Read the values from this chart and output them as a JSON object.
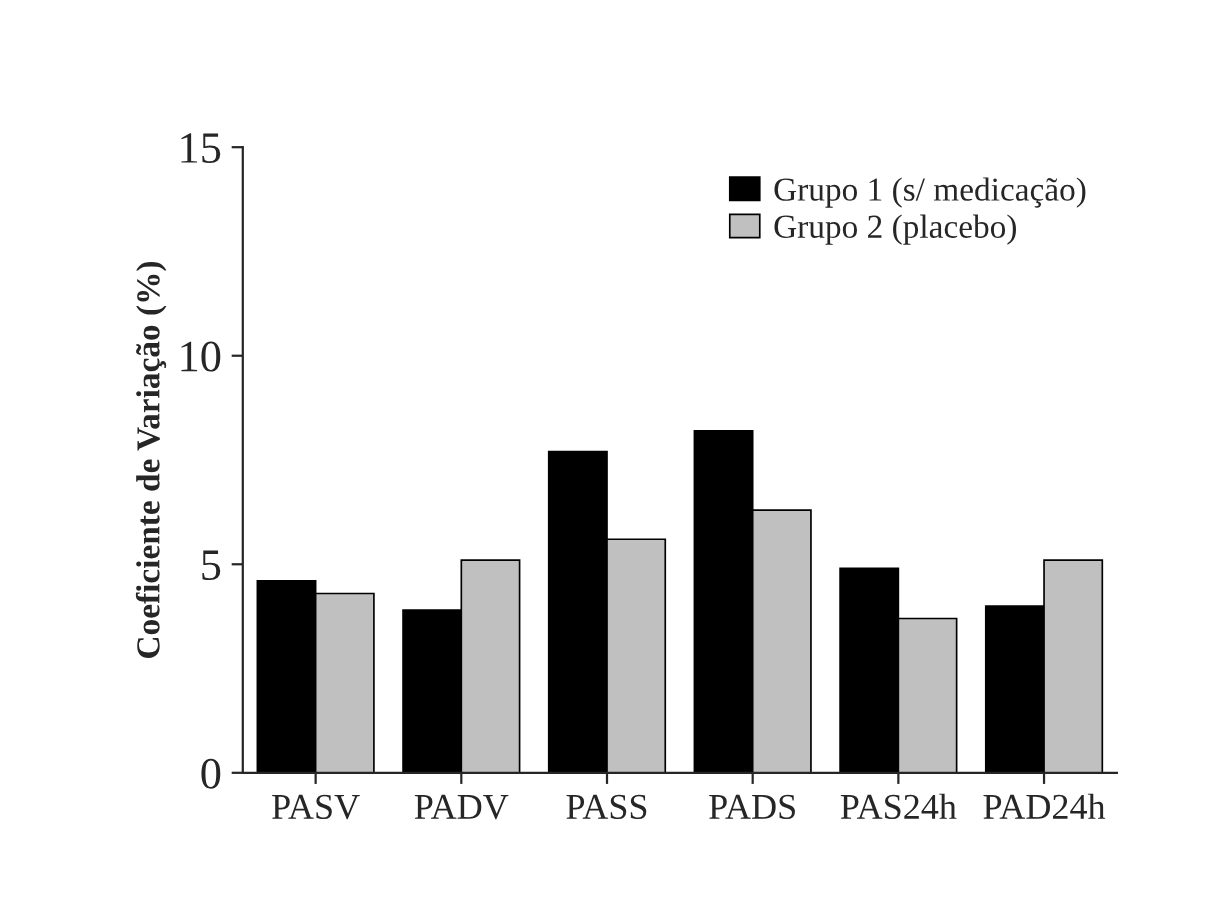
{
  "chart_data": {
    "type": "bar",
    "ylabel": "Coeficiente de Variação (%)",
    "categories": [
      "PASV",
      "PADV",
      "PASS",
      "PADS",
      "PAS24h",
      "PAD24h"
    ],
    "series": [
      {
        "name": "Grupo 1 (s/ medicação)",
        "color": "#000000",
        "values": [
          4.6,
          3.9,
          7.7,
          8.2,
          4.9,
          4.0
        ]
      },
      {
        "name": "Grupo 2 (placebo)",
        "color": "#c0c0c0",
        "values": [
          4.3,
          5.1,
          5.6,
          6.3,
          3.7,
          5.1
        ]
      }
    ],
    "ylim": [
      0,
      15
    ],
    "yticks": [
      0,
      5,
      10,
      15
    ],
    "grid": false,
    "legend": "top right"
  }
}
